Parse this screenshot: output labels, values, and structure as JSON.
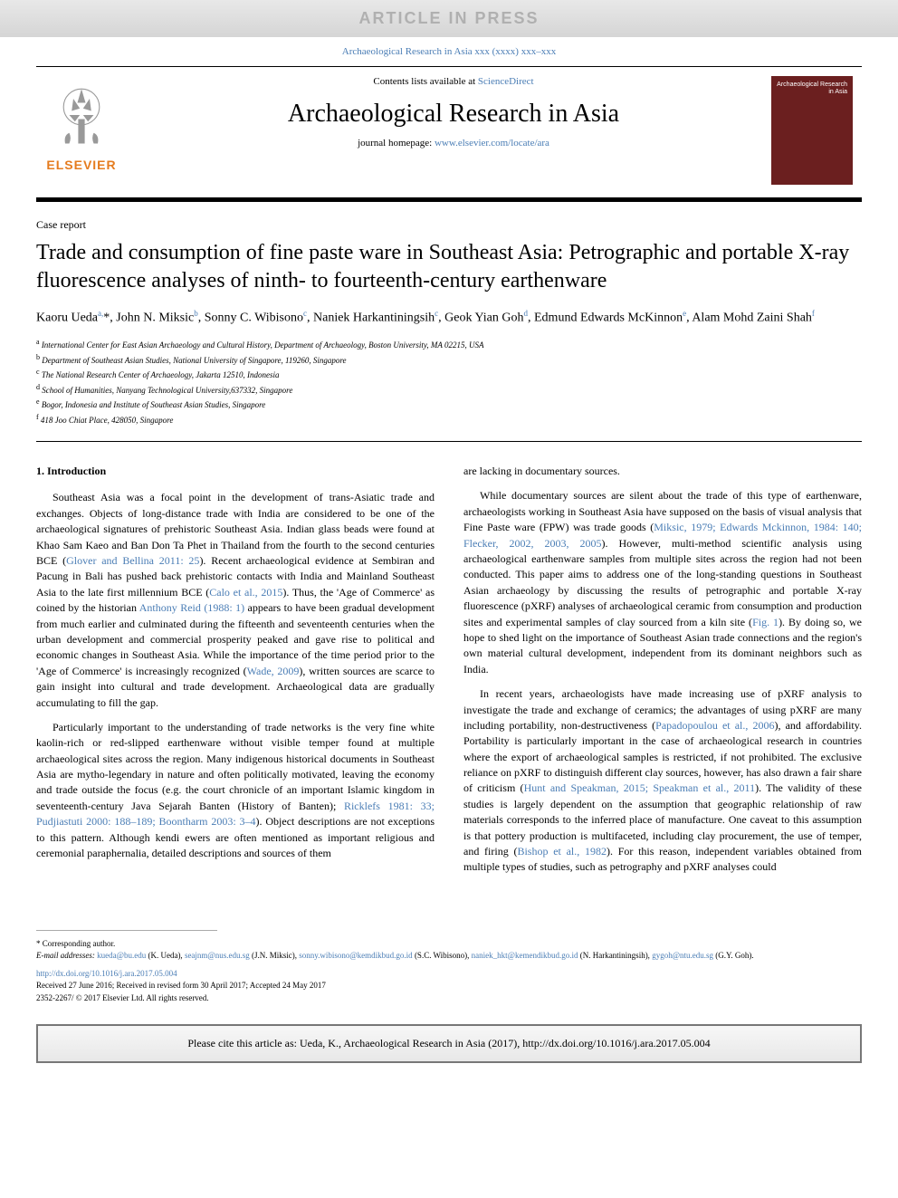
{
  "banner": {
    "text": "ARTICLE IN PRESS"
  },
  "journal_ref": {
    "prefix": "Archaeological Research in Asia xxx (xxxx) xxx–xxx",
    "link_color": "#4a7db5"
  },
  "header": {
    "contents_prefix": "Contents lists available at ",
    "contents_link": "ScienceDirect",
    "journal_title": "Archaeological Research in Asia",
    "homepage_prefix": "journal homepage: ",
    "homepage_link": "www.elsevier.com/locate/ara",
    "elsevier_label": "ELSEVIER",
    "cover_title": "Archaeological Research in Asia",
    "cover_bg": "#6b1f1f"
  },
  "article": {
    "type": "Case report",
    "title": "Trade and consumption of fine paste ware in Southeast Asia: Petrographic and portable X-ray fluorescence analyses of ninth- to fourteenth-century earthenware"
  },
  "authors_html": "Kaoru Ueda<sup>a,</sup>*, John N. Miksic<sup>b</sup>, Sonny C. Wibisono<sup>c</sup>, Naniek Harkantiningsih<sup>c</sup>, Geok Yian Goh<sup>d</sup>, Edmund Edwards McKinnon<sup>e</sup>, Alam Mohd Zaini Shah<sup>f</sup>",
  "affiliations": [
    {
      "sup": "a",
      "text": "International Center for East Asian Archaeology and Cultural History, Department of Archaeology, Boston University, MA 02215, USA"
    },
    {
      "sup": "b",
      "text": "Department of Southeast Asian Studies, National University of Singapore, 119260, Singapore"
    },
    {
      "sup": "c",
      "text": "The National Research Center of Archaeology, Jakarta 12510, Indonesia"
    },
    {
      "sup": "d",
      "text": "School of Humanities, Nanyang Technological University,637332, Singapore"
    },
    {
      "sup": "e",
      "text": "Bogor, Indonesia and Institute of Southeast Asian Studies, Singapore"
    },
    {
      "sup": "f",
      "text": "418 Joo Chiat Place, 428050, Singapore"
    }
  ],
  "section_heading": "1. Introduction",
  "col1": {
    "p1": "Southeast Asia was a focal point in the development of trans-Asiatic trade and exchanges. Objects of long-distance trade with India are considered to be one of the archaeological signatures of prehistoric Southeast Asia. Indian glass beads were found at Khao Sam Kaeo and Ban Don Ta Phet in Thailand from the fourth to the second centuries BCE (",
    "p1_link1": "Glover and Bellina 2011: 25",
    "p1_b": "). Recent archaeological evidence at Sembiran and Pacung in Bali has pushed back prehistoric contacts with India and Mainland Southeast Asia to the late first millennium BCE (",
    "p1_link2": "Calo et al., 2015",
    "p1_c": "). Thus, the 'Age of Commerce' as coined by the historian ",
    "p1_link3": "Anthony Reid (1988: 1)",
    "p1_d": " appears to have been gradual development from much earlier and culminated during the fifteenth and seventeenth centuries when the urban development and commercial prosperity peaked and gave rise to political and economic changes in Southeast Asia. While the importance of the time period prior to the 'Age of Commerce' is increasingly recognized (",
    "p1_link4": "Wade, 2009",
    "p1_e": "), written sources are scarce to gain insight into cultural and trade development. Archaeological data are gradually accumulating to fill the gap.",
    "p2": "Particularly important to the understanding of trade networks is the very fine white kaolin-rich or red-slipped earthenware without visible temper found at multiple archaeological sites across the region. Many indigenous historical documents in Southeast Asia are mytho-legendary in nature and often politically motivated, leaving the economy and trade outside the focus (e.g. the court chronicle of an important Islamic kingdom in seventeenth-century Java Sejarah Banten (History of Banten); ",
    "p2_link1": "Ricklefs 1981: 33; Pudjiastuti 2000: 188–189; Boontharm 2003: 3–4",
    "p2_b": "). Object descriptions are not exceptions to this pattern. Although kendi ewers are often mentioned as important religious and ceremonial paraphernalia, detailed descriptions and sources of them"
  },
  "col2": {
    "p0": "are lacking in documentary sources.",
    "p1": "While documentary sources are silent about the trade of this type of earthenware, archaeologists working in Southeast Asia have supposed on the basis of visual analysis that Fine Paste ware (FPW) was trade goods (",
    "p1_link1": "Miksic, 1979; Edwards Mckinnon, 1984: 140; Flecker, 2002, 2003, 2005",
    "p1_b": "). However, multi-method scientific analysis using archaeological earthenware samples from multiple sites across the region had not been conducted. This paper aims to address one of the long-standing questions in Southeast Asian archaeology by discussing the results of petrographic and portable X-ray fluorescence (pXRF) analyses of archaeological ceramic from consumption and production sites and experimental samples of clay sourced from a kiln site (",
    "p1_link2": "Fig. 1",
    "p1_c": "). By doing so, we hope to shed light on the importance of Southeast Asian trade connections and the region's own material cultural development, independent from its dominant neighbors such as India.",
    "p2": "In recent years, archaeologists have made increasing use of pXRF analysis to investigate the trade and exchange of ceramics; the advantages of using pXRF are many including portability, non-destructiveness (",
    "p2_link1": "Papadopoulou et al., 2006",
    "p2_b": "), and affordability. Portability is particularly important in the case of archaeological research in countries where the export of archaeological samples is restricted, if not prohibited. The exclusive reliance on pXRF to distinguish different clay sources, however, has also drawn a fair share of criticism (",
    "p2_link2": "Hunt and Speakman, 2015; Speakman et al., 2011",
    "p2_c": "). The validity of these studies is largely dependent on the assumption that geographic relationship of raw materials corresponds to the inferred place of manufacture. One caveat to this assumption is that pottery production is multifaceted, including clay procurement, the use of temper, and firing (",
    "p2_link3": "Bishop et al., 1982",
    "p2_d": "). For this reason, independent variables obtained from multiple types of studies, such as petrography and pXRF analyses could"
  },
  "footer": {
    "corresp": "* Corresponding author.",
    "email_label": "E-mail addresses: ",
    "emails": [
      {
        "addr": "kueda@bu.edu",
        "name": "(K. Ueda)"
      },
      {
        "addr": "seajnm@nus.edu.sg",
        "name": "(J.N. Miksic)"
      },
      {
        "addr": "sonny.wibisono@kemdikbud.go.id",
        "name": "(S.C. Wibisono)"
      },
      {
        "addr": "naniek_hkt@kemendikbud.go.id",
        "name": "(N. Harkantiningsih)"
      },
      {
        "addr": "gygoh@ntu.edu.sg",
        "name": "(G.Y. Goh)"
      }
    ],
    "doi": "http://dx.doi.org/10.1016/j.ara.2017.05.004",
    "received": "Received 27 June 2016; Received in revised form 30 April 2017; Accepted 24 May 2017",
    "copyright": "2352-2267/ © 2017 Elsevier Ltd. All rights reserved."
  },
  "cite_box": "Please cite this article as: Ueda, K., Archaeological Research in Asia (2017), http://dx.doi.org/10.1016/j.ara.2017.05.004",
  "colors": {
    "link": "#4a7db5",
    "elsevier_orange": "#e57c1f"
  }
}
